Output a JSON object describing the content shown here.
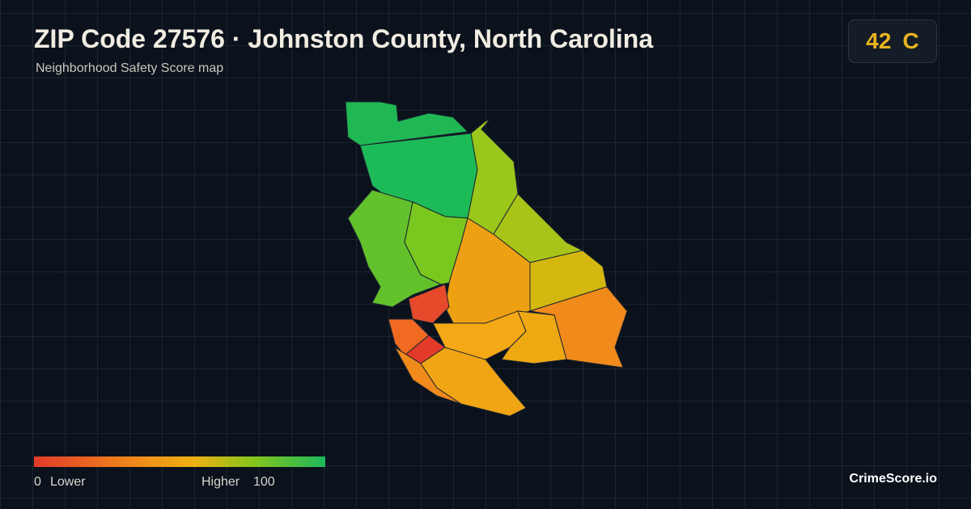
{
  "header": {
    "title": "ZIP Code 27576 · Johnston County, North Carolina",
    "subtitle": "Neighborhood Safety Score map"
  },
  "score": {
    "value": 42,
    "grade": "C"
  },
  "legend": {
    "min": 0,
    "min_label": "Lower",
    "max_label": "Higher",
    "max": 100
  },
  "brand": "CrimeScore.io"
}
